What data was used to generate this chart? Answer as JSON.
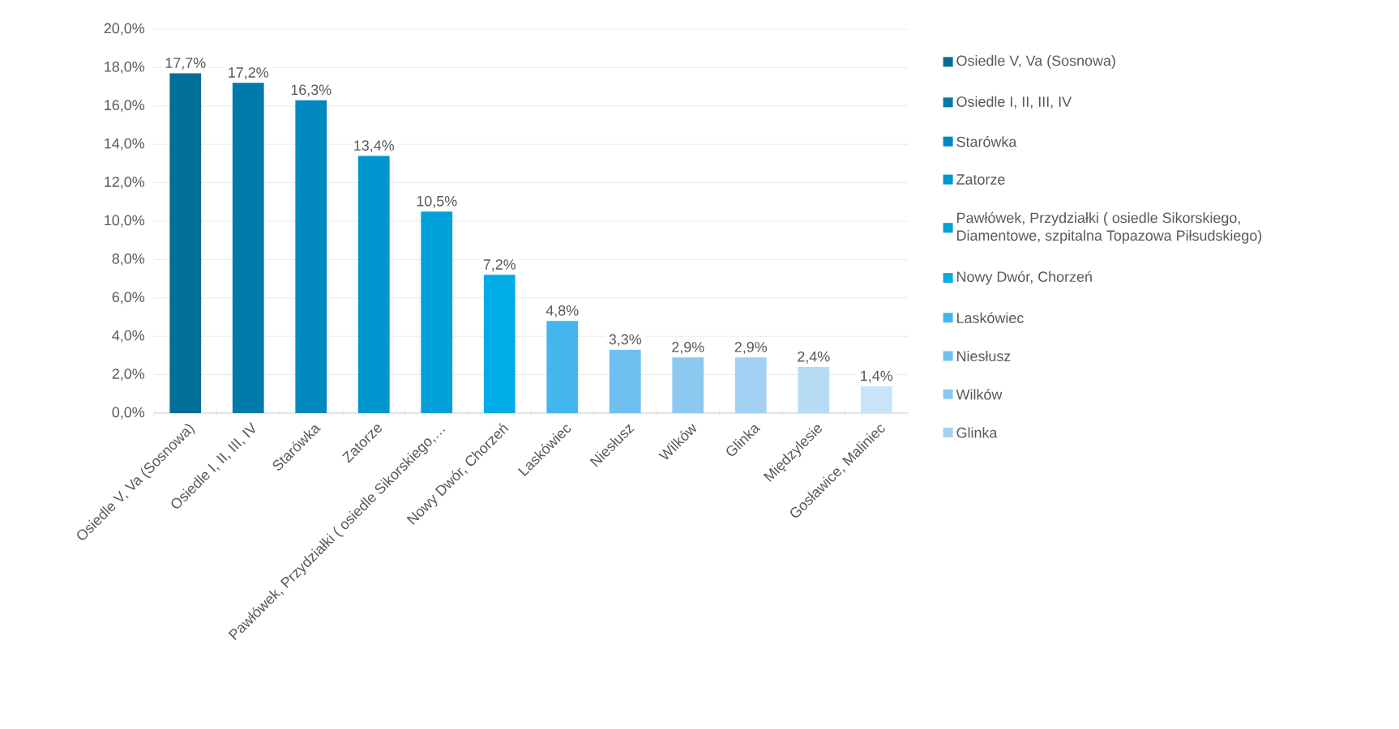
{
  "chart_data": {
    "type": "bar",
    "categories": [
      "Osiedle V, Va (Sosnowa)",
      "Osiedle I, II, III, IV",
      "Starówka",
      "Zatorze",
      "Pawłówek, Przydziałki ( osiedle Sikorskiego,…",
      "Nowy Dwór, Chorzeń",
      "Laskówiec",
      "Niesłusz",
      "Wilków",
      "Glinka",
      "Międzylesie",
      "Gosławice, Maliniec"
    ],
    "series": [
      {
        "name": "Osiedle V, Va (Sosnowa)",
        "color": "#006e96",
        "values": [
          17.7,
          null,
          null,
          null,
          null,
          null,
          null,
          null,
          null,
          null,
          null,
          null
        ],
        "value_labels": [
          "17,7%",
          null,
          null,
          null,
          null,
          null,
          null,
          null,
          null,
          null,
          null,
          null
        ]
      },
      {
        "name": "Osiedle I, II, III, IV",
        "color": "#007aaa",
        "values": [
          null,
          17.2,
          null,
          null,
          null,
          null,
          null,
          null,
          null,
          null,
          null,
          null
        ],
        "value_labels": [
          null,
          "17,2%",
          null,
          null,
          null,
          null,
          null,
          null,
          null,
          null,
          null,
          null
        ]
      },
      {
        "name": "Starówka",
        "color": "#0088bf",
        "values": [
          null,
          null,
          16.3,
          null,
          null,
          null,
          null,
          null,
          null,
          null,
          null,
          null
        ],
        "value_labels": [
          null,
          null,
          "16,3%",
          null,
          null,
          null,
          null,
          null,
          null,
          null,
          null,
          null
        ]
      },
      {
        "name": "Zatorze",
        "color": "#0096cf",
        "values": [
          null,
          null,
          null,
          13.4,
          null,
          null,
          null,
          null,
          null,
          null,
          null,
          null
        ],
        "value_labels": [
          null,
          null,
          null,
          "13,4%",
          null,
          null,
          null,
          null,
          null,
          null,
          null,
          null
        ]
      },
      {
        "name": "Pawłówek, Przydziałki ( osiedle Sikorskiego, Diamentowe, szpitalna Topazowa Piłsudskiego)",
        "color": "#00a0da",
        "values": [
          null,
          null,
          null,
          null,
          10.5,
          null,
          null,
          null,
          null,
          null,
          null,
          null
        ],
        "value_labels": [
          null,
          null,
          null,
          null,
          "10,5%",
          null,
          null,
          null,
          null,
          null,
          null,
          null
        ]
      },
      {
        "name": "Nowy Dwór, Chorzeń",
        "color": "#00ace6",
        "values": [
          null,
          null,
          null,
          null,
          null,
          7.2,
          null,
          null,
          null,
          null,
          null,
          null
        ],
        "value_labels": [
          null,
          null,
          null,
          null,
          null,
          "7,2%",
          null,
          null,
          null,
          null,
          null,
          null
        ]
      },
      {
        "name": "Laskówiec",
        "color": "#44b6ec",
        "values": [
          null,
          null,
          null,
          null,
          null,
          null,
          4.8,
          null,
          null,
          null,
          null,
          null
        ],
        "value_labels": [
          null,
          null,
          null,
          null,
          null,
          null,
          "4,8%",
          null,
          null,
          null,
          null,
          null
        ]
      },
      {
        "name": "Niesłusz",
        "color": "#6dc0ef",
        "values": [
          null,
          null,
          null,
          null,
          null,
          null,
          null,
          3.3,
          null,
          null,
          null,
          null
        ],
        "value_labels": [
          null,
          null,
          null,
          null,
          null,
          null,
          null,
          "3,3%",
          null,
          null,
          null,
          null
        ]
      },
      {
        "name": "Wilków",
        "color": "#8cc8f0",
        "values": [
          null,
          null,
          null,
          null,
          null,
          null,
          null,
          null,
          2.9,
          null,
          null,
          null
        ],
        "value_labels": [
          null,
          null,
          null,
          null,
          null,
          null,
          null,
          null,
          "2,9%",
          null,
          null,
          null
        ]
      },
      {
        "name": "Glinka",
        "color": "#a2d1f3",
        "values": [
          null,
          null,
          null,
          null,
          null,
          null,
          null,
          null,
          null,
          2.9,
          null,
          null
        ],
        "value_labels": [
          null,
          null,
          null,
          null,
          null,
          null,
          null,
          null,
          null,
          "2,9%",
          null,
          null
        ]
      },
      {
        "color": "#b8dbf5",
        "values": [
          null,
          null,
          null,
          null,
          null,
          null,
          null,
          null,
          null,
          null,
          2.4,
          null
        ],
        "value_labels": [
          null,
          null,
          null,
          null,
          null,
          null,
          null,
          null,
          null,
          null,
          "2,4%",
          null
        ]
      },
      {
        "color": "#c9e3f7",
        "values": [
          null,
          null,
          null,
          null,
          null,
          null,
          null,
          null,
          null,
          null,
          null,
          1.4
        ],
        "value_labels": [
          null,
          null,
          null,
          null,
          null,
          null,
          null,
          null,
          null,
          null,
          null,
          "1,4%"
        ]
      }
    ],
    "ylim": [
      0,
      20
    ],
    "yticks": [
      {
        "value": 0,
        "label": "0,0%"
      },
      {
        "value": 2,
        "label": "2,0%"
      },
      {
        "value": 4,
        "label": "4,0%"
      },
      {
        "value": 6,
        "label": "6,0%"
      },
      {
        "value": 8,
        "label": "8,0%"
      },
      {
        "value": 10,
        "label": "10,0%"
      },
      {
        "value": 12,
        "label": "12,0%"
      },
      {
        "value": 14,
        "label": "14,0%"
      },
      {
        "value": 16,
        "label": "16,0%"
      },
      {
        "value": 18,
        "label": "18,0%"
      },
      {
        "value": 20,
        "label": "20,0%"
      }
    ],
    "grid": "y",
    "legend": "right"
  }
}
